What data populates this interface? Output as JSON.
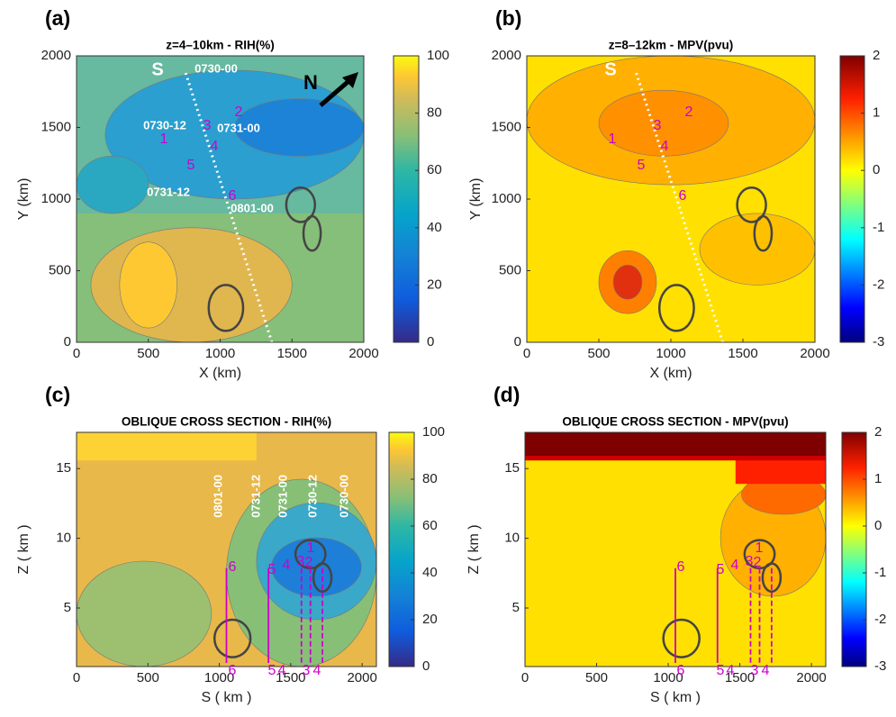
{
  "chart_data": [
    {
      "type": "contour",
      "panel_label": "(a)",
      "title": "z=4–10km  -  RIH(%)",
      "xlabel": "X (km)",
      "ylabel": "Y (km)",
      "xlim": [
        0,
        2000
      ],
      "ylim": [
        0,
        2000
      ],
      "xticks": [
        0,
        500,
        1000,
        1500,
        2000
      ],
      "yticks": [
        0,
        500,
        1000,
        1500,
        2000
      ],
      "colormap": "parula",
      "clim": [
        0,
        100
      ],
      "cticks": [
        0,
        20,
        40,
        60,
        80,
        100
      ],
      "annotations": [
        "S",
        "N",
        "0730-00",
        "0730-12",
        "0731-00",
        "0731-12",
        "0801-00",
        "1",
        "2",
        "3",
        "4",
        "5",
        "6"
      ]
    },
    {
      "type": "contour",
      "panel_label": "(b)",
      "title": "z=8–12km  -  MPV(pvu)",
      "xlabel": "X (km)",
      "ylabel": "Y (km)",
      "xlim": [
        0,
        2000
      ],
      "ylim": [
        0,
        2000
      ],
      "xticks": [
        0,
        500,
        1000,
        1500,
        2000
      ],
      "yticks": [
        0,
        500,
        1000,
        1500,
        2000
      ],
      "colormap": "jet",
      "clim": [
        -3,
        2
      ],
      "cticks": [
        -3,
        -2,
        -1,
        0,
        1,
        2
      ],
      "annotations": [
        "S",
        "1",
        "2",
        "3",
        "4",
        "5",
        "6"
      ]
    },
    {
      "type": "contour",
      "panel_label": "(c)",
      "title": "OBLIQUE CROSS SECTION  -  RIH(%)",
      "xlabel": "S ( km )",
      "ylabel": "Z ( km )",
      "xlim": [
        0,
        2100
      ],
      "ylim": [
        0.8,
        17.6
      ],
      "xticks": [
        0,
        500,
        1000,
        1500,
        2000
      ],
      "yticks": [
        5,
        10,
        15
      ],
      "colormap": "parula",
      "clim": [
        0,
        100
      ],
      "cticks": [
        0,
        20,
        40,
        60,
        80,
        100
      ],
      "annotations": [
        "0801-00",
        "0731-12",
        "0731-00",
        "0730-12",
        "0730-00",
        "6",
        "5",
        "4",
        "1",
        "3",
        "2",
        "6",
        "5",
        "4",
        "3",
        "4"
      ]
    },
    {
      "type": "contour",
      "panel_label": "(d)",
      "title": "OBLIQUE CROSS SECTION  -  MPV(pvu)",
      "xlabel": "S ( km )",
      "ylabel": "Z ( km )",
      "xlim": [
        0,
        2100
      ],
      "ylim": [
        0.8,
        17.6
      ],
      "xticks": [
        0,
        500,
        1000,
        1500,
        2000
      ],
      "yticks": [
        5,
        10,
        15
      ],
      "colormap": "jet",
      "clim": [
        -3,
        2
      ],
      "cticks": [
        -3,
        -2,
        -1,
        0,
        1,
        2
      ],
      "annotations": [
        "6",
        "5",
        "4",
        "1",
        "3",
        "2",
        "6",
        "5",
        "4",
        "3",
        "4"
      ]
    }
  ]
}
